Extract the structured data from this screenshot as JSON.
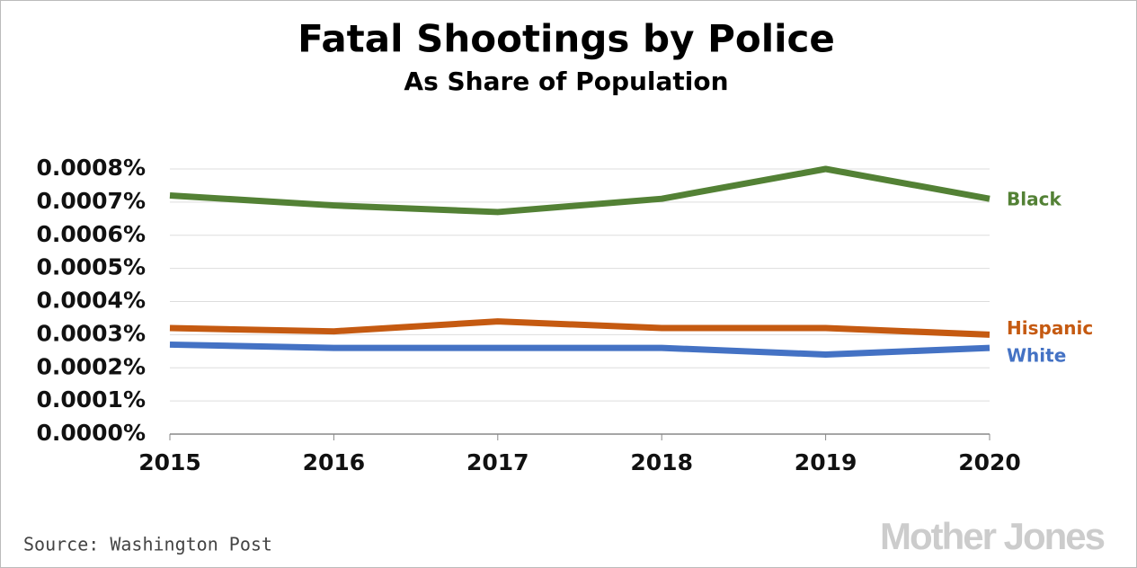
{
  "chart_data": {
    "type": "line",
    "title": "Fatal Shootings by Police",
    "subtitle": "As Share of Population",
    "x": [
      2015,
      2016,
      2017,
      2018,
      2019,
      2020
    ],
    "xlim": [
      2015,
      2020
    ],
    "series": [
      {
        "name": "Black",
        "color": "#538135",
        "values": [
          0.00072,
          0.00069,
          0.00067,
          0.00071,
          0.0008,
          0.00071
        ]
      },
      {
        "name": "Hispanic",
        "color": "#c55a11",
        "values": [
          0.00032,
          0.00031,
          0.00034,
          0.00032,
          0.00032,
          0.0003
        ]
      },
      {
        "name": "White",
        "color": "#4472c4",
        "values": [
          0.00027,
          0.00026,
          0.00026,
          0.00026,
          0.00024,
          0.00026
        ]
      }
    ],
    "ylim": [
      0,
      0.0008
    ],
    "yticks": [
      {
        "value": 0,
        "label": "0.0000%"
      },
      {
        "value": 0.0001,
        "label": "0.0001%"
      },
      {
        "value": 0.0002,
        "label": "0.0002%"
      },
      {
        "value": 0.0003,
        "label": "0.0003%"
      },
      {
        "value": 0.0004,
        "label": "0.0004%"
      },
      {
        "value": 0.0005,
        "label": "0.0005%"
      },
      {
        "value": 0.0006,
        "label": "0.0006%"
      },
      {
        "value": 0.0007,
        "label": "0.0007%"
      },
      {
        "value": 0.0008,
        "label": "0.0008%"
      }
    ],
    "grid": true,
    "source": "Source: Washington Post",
    "watermark": "Mother Jones"
  }
}
